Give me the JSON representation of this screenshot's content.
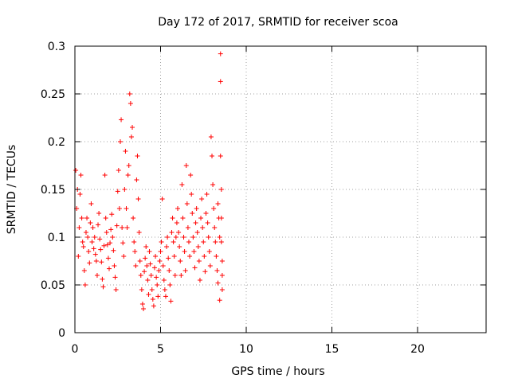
{
  "chart_data": {
    "type": "scatter",
    "title": "Day 172 of 2017, SRMTID for receiver scoa",
    "xlabel": "GPS time / hours",
    "ylabel": "SRMTID / TECUs",
    "xlim": [
      0,
      24
    ],
    "ylim": [
      0,
      0.3
    ],
    "xticks": [
      0,
      5,
      10,
      15,
      20
    ],
    "xtick_labels": [
      "0",
      "5",
      "10",
      "15",
      "20"
    ],
    "yticks": [
      0,
      0.05,
      0.1,
      0.15,
      0.2,
      0.25,
      0.3
    ],
    "ytick_labels": [
      "0",
      "0.05",
      "0.1",
      "0.15",
      "0.2",
      "0.25",
      "0.3"
    ],
    "grid": true,
    "marker": "+",
    "color": "#ff0000",
    "series": [
      {
        "name": "scoa",
        "points": [
          [
            0.05,
            0.17
          ],
          [
            0.1,
            0.13
          ],
          [
            0.15,
            0.15
          ],
          [
            0.2,
            0.08
          ],
          [
            0.25,
            0.11
          ],
          [
            0.3,
            0.145
          ],
          [
            0.35,
            0.165
          ],
          [
            0.4,
            0.12
          ],
          [
            0.45,
            0.095
          ],
          [
            0.5,
            0.09
          ],
          [
            0.55,
            0.065
          ],
          [
            0.6,
            0.05
          ],
          [
            0.65,
            0.105
          ],
          [
            0.7,
            0.12
          ],
          [
            0.75,
            0.1
          ],
          [
            0.8,
            0.085
          ],
          [
            0.85,
            0.073
          ],
          [
            0.9,
            0.115
          ],
          [
            0.95,
            0.135
          ],
          [
            1.0,
            0.095
          ],
          [
            1.05,
            0.11
          ],
          [
            1.1,
            0.088
          ],
          [
            1.15,
            0.1
          ],
          [
            1.2,
            0.082
          ],
          [
            1.25,
            0.075
          ],
          [
            1.3,
            0.06
          ],
          [
            1.35,
            0.113
          ],
          [
            1.4,
            0.125
          ],
          [
            1.45,
            0.098
          ],
          [
            1.5,
            0.087
          ],
          [
            1.55,
            0.074
          ],
          [
            1.6,
            0.056
          ],
          [
            1.65,
            0.048
          ],
          [
            1.7,
            0.091
          ],
          [
            1.75,
            0.165
          ],
          [
            1.8,
            0.12
          ],
          [
            1.85,
            0.105
          ],
          [
            1.9,
            0.092
          ],
          [
            1.95,
            0.078
          ],
          [
            2.0,
            0.067
          ],
          [
            2.05,
            0.094
          ],
          [
            2.1,
            0.108
          ],
          [
            2.15,
            0.124
          ],
          [
            2.2,
            0.1
          ],
          [
            2.25,
            0.086
          ],
          [
            2.3,
            0.07
          ],
          [
            2.35,
            0.058
          ],
          [
            2.4,
            0.045
          ],
          [
            2.45,
            0.112
          ],
          [
            2.5,
            0.148
          ],
          [
            2.55,
            0.17
          ],
          [
            2.6,
            0.13
          ],
          [
            2.65,
            0.2
          ],
          [
            2.7,
            0.223
          ],
          [
            2.75,
            0.11
          ],
          [
            2.8,
            0.094
          ],
          [
            2.85,
            0.08
          ],
          [
            2.9,
            0.15
          ],
          [
            2.95,
            0.19
          ],
          [
            3.0,
            0.13
          ],
          [
            3.05,
            0.11
          ],
          [
            3.1,
            0.165
          ],
          [
            3.15,
            0.175
          ],
          [
            3.2,
            0.25
          ],
          [
            3.25,
            0.24
          ],
          [
            3.3,
            0.205
          ],
          [
            3.35,
            0.215
          ],
          [
            3.4,
            0.12
          ],
          [
            3.45,
            0.095
          ],
          [
            3.5,
            0.085
          ],
          [
            3.55,
            0.07
          ],
          [
            3.6,
            0.16
          ],
          [
            3.65,
            0.185
          ],
          [
            3.7,
            0.14
          ],
          [
            3.75,
            0.105
          ],
          [
            3.8,
            0.075
          ],
          [
            3.85,
            0.06
          ],
          [
            3.9,
            0.045
          ],
          [
            3.95,
            0.03
          ],
          [
            4.0,
            0.025
          ],
          [
            4.05,
            0.064
          ],
          [
            4.1,
            0.078
          ],
          [
            4.15,
            0.09
          ],
          [
            4.2,
            0.07
          ],
          [
            4.25,
            0.055
          ],
          [
            4.3,
            0.04
          ],
          [
            4.35,
            0.085
          ],
          [
            4.4,
            0.072
          ],
          [
            4.45,
            0.06
          ],
          [
            4.5,
            0.045
          ],
          [
            4.55,
            0.035
          ],
          [
            4.6,
            0.028
          ],
          [
            4.65,
            0.068
          ],
          [
            4.7,
            0.08
          ],
          [
            4.75,
            0.058
          ],
          [
            4.8,
            0.05
          ],
          [
            4.85,
            0.038
          ],
          [
            4.9,
            0.065
          ],
          [
            4.95,
            0.075
          ],
          [
            5.0,
            0.085
          ],
          [
            5.05,
            0.095
          ],
          [
            5.1,
            0.14
          ],
          [
            5.15,
            0.07
          ],
          [
            5.2,
            0.055
          ],
          [
            5.25,
            0.045
          ],
          [
            5.3,
            0.038
          ],
          [
            5.35,
            0.09
          ],
          [
            5.4,
            0.1
          ],
          [
            5.45,
            0.078
          ],
          [
            5.5,
            0.065
          ],
          [
            5.55,
            0.05
          ],
          [
            5.6,
            0.033
          ],
          [
            5.65,
            0.105
          ],
          [
            5.7,
            0.12
          ],
          [
            5.75,
            0.095
          ],
          [
            5.8,
            0.08
          ],
          [
            5.85,
            0.06
          ],
          [
            5.9,
            0.1
          ],
          [
            5.95,
            0.115
          ],
          [
            6.0,
            0.13
          ],
          [
            6.05,
            0.105
          ],
          [
            6.1,
            0.09
          ],
          [
            6.15,
            0.075
          ],
          [
            6.2,
            0.06
          ],
          [
            6.25,
            0.155
          ],
          [
            6.3,
            0.12
          ],
          [
            6.35,
            0.1
          ],
          [
            6.4,
            0.085
          ],
          [
            6.45,
            0.065
          ],
          [
            6.5,
            0.175
          ],
          [
            6.55,
            0.135
          ],
          [
            6.6,
            0.11
          ],
          [
            6.65,
            0.095
          ],
          [
            6.7,
            0.08
          ],
          [
            6.75,
            0.165
          ],
          [
            6.8,
            0.145
          ],
          [
            6.85,
            0.125
          ],
          [
            6.9,
            0.1
          ],
          [
            6.95,
            0.085
          ],
          [
            7.0,
            0.068
          ],
          [
            7.05,
            0.115
          ],
          [
            7.1,
            0.13
          ],
          [
            7.15,
            0.105
          ],
          [
            7.2,
            0.09
          ],
          [
            7.25,
            0.075
          ],
          [
            7.3,
            0.055
          ],
          [
            7.35,
            0.12
          ],
          [
            7.4,
            0.14
          ],
          [
            7.45,
            0.11
          ],
          [
            7.5,
            0.095
          ],
          [
            7.55,
            0.08
          ],
          [
            7.6,
            0.064
          ],
          [
            7.65,
            0.125
          ],
          [
            7.7,
            0.145
          ],
          [
            7.75,
            0.115
          ],
          [
            7.8,
            0.1
          ],
          [
            7.85,
            0.085
          ],
          [
            7.9,
            0.07
          ],
          [
            7.95,
            0.205
          ],
          [
            8.0,
            0.185
          ],
          [
            8.05,
            0.155
          ],
          [
            8.1,
            0.13
          ],
          [
            8.15,
            0.11
          ],
          [
            8.2,
            0.095
          ],
          [
            8.25,
            0.08
          ],
          [
            8.3,
            0.065
          ],
          [
            8.35,
            0.135
          ],
          [
            8.4,
            0.12
          ],
          [
            8.45,
            0.1
          ],
          [
            8.5,
            0.292
          ],
          [
            8.5,
            0.263
          ],
          [
            8.5,
            0.185
          ],
          [
            8.55,
            0.15
          ],
          [
            8.55,
            0.12
          ],
          [
            8.55,
            0.095
          ],
          [
            8.6,
            0.075
          ],
          [
            8.6,
            0.06
          ],
          [
            8.6,
            0.045
          ],
          [
            8.45,
            0.034
          ],
          [
            8.35,
            0.052
          ]
        ]
      }
    ]
  }
}
